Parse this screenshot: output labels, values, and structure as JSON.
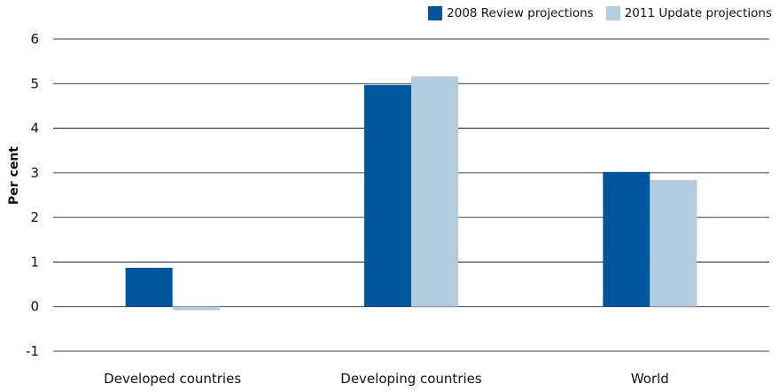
{
  "chart_data": {
    "type": "bar",
    "title": "",
    "xlabel": "",
    "ylabel": "Per cent",
    "ylim": [
      -1,
      6
    ],
    "yticks": [
      -1,
      0,
      1,
      2,
      3,
      4,
      5,
      6
    ],
    "grid": "horizontal",
    "legend_position": "top-right",
    "categories": [
      "Developed countries",
      "Developing countries",
      "World"
    ],
    "series": [
      {
        "name": "2008 Review projections",
        "color": "#00569b",
        "values": [
          0.87,
          4.97,
          3.02
        ]
      },
      {
        "name": "2011 Update projections",
        "color": "#b4cce0",
        "values": [
          -0.08,
          5.16,
          2.84
        ]
      }
    ]
  }
}
